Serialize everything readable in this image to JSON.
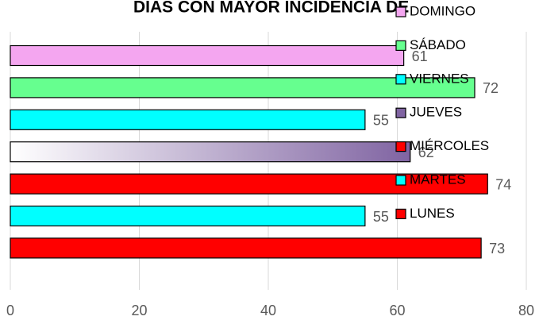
{
  "chart_data": {
    "type": "bar",
    "orientation": "horizontal",
    "title": "DIAS CON MAYOR INCIDENCIA DE",
    "categories": [
      "DOMINGO",
      "SÁBADO",
      "VIERNES",
      "JUEVES",
      "MIÉRCOLES",
      "MARTES",
      "LUNES"
    ],
    "values": [
      61,
      72,
      55,
      62,
      74,
      55,
      73
    ],
    "colors": [
      "#f4a6f0",
      "#66ff8f",
      "#00ffff",
      "#8064a2",
      "#ff0000",
      "#00ffff",
      "#ff0000"
    ],
    "gradient": [
      false,
      false,
      false,
      true,
      false,
      false,
      false
    ],
    "xlim": [
      0,
      80
    ],
    "xticks": [
      0,
      20,
      40,
      60,
      80
    ],
    "grid": true,
    "legend": "right"
  }
}
